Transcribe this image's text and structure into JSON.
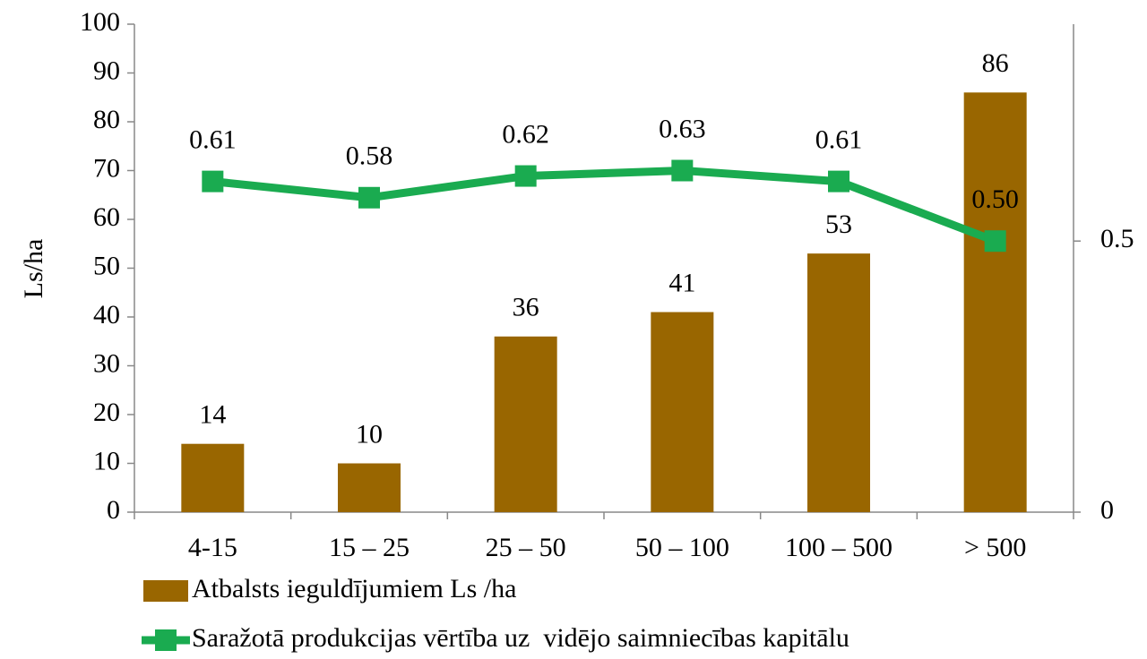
{
  "chart_data": {
    "type": "bar_line",
    "y_label": "Ls/ha",
    "categories": [
      "4-15",
      "15 – 25",
      "25 – 50",
      "50 – 100",
      "100 – 500",
      "> 500"
    ],
    "series": [
      {
        "name": "Atbalsts ieguldījumiem Ls /ha",
        "type": "bar",
        "color": "#996600",
        "values": [
          14,
          10,
          36,
          41,
          53,
          86
        ]
      },
      {
        "name": "Saražotā produkcijas vērtība uz  vidējo saimniecības kapitālu",
        "type": "line",
        "axis": "y2",
        "color": "#1aab50",
        "values": [
          0.61,
          0.58,
          0.62,
          0.63,
          0.61,
          0.5
        ],
        "value_labels": [
          "0.61",
          "0.58",
          "0.62",
          "0.63",
          "0.61",
          "0.50"
        ]
      }
    ],
    "ylim": [
      0,
      100
    ],
    "yticks": [
      0,
      10,
      20,
      30,
      40,
      50,
      60,
      70,
      80,
      90,
      100
    ],
    "y2lim": [
      0,
      0.9
    ],
    "y2ticks": [
      0,
      0.5
    ]
  }
}
